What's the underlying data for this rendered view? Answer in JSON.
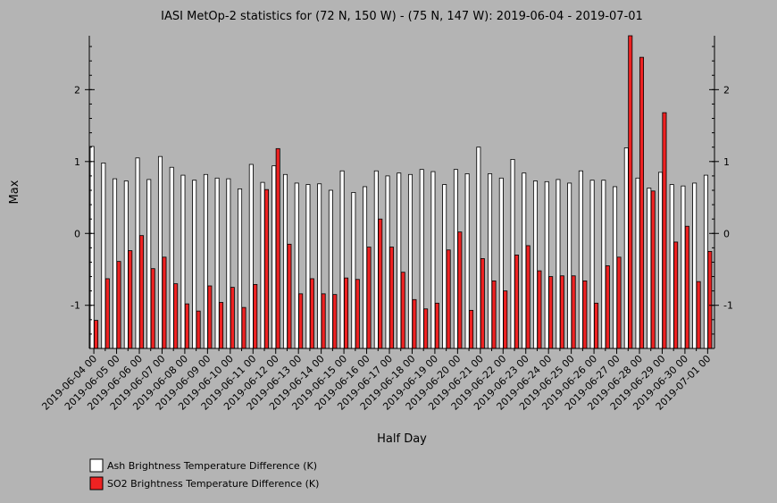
{
  "chart_data": {
    "type": "bar",
    "title": "IASI MetOp-2 statistics for (72 N, 150 W) - (75 N, 147 W): 2019-06-04 - 2019-07-01",
    "xlabel": "Half Day",
    "ylabel": "Max",
    "ylim": [
      -1.6,
      2.75
    ],
    "yticks": [
      -1,
      0,
      1,
      2
    ],
    "grid": false,
    "legend_position": "bottom-left",
    "x_tick_labels": [
      "2019-06-04 00",
      "2019-06-05 00",
      "2019-06-06 00",
      "2019-06-07 00",
      "2019-06-08 00",
      "2019-06-09 00",
      "2019-06-10 00",
      "2019-06-11 00",
      "2019-06-12 00",
      "2019-06-13 00",
      "2019-06-14 00",
      "2019-06-15 00",
      "2019-06-16 00",
      "2019-06-17 00",
      "2019-06-18 00",
      "2019-06-19 00",
      "2019-06-20 00",
      "2019-06-21 00",
      "2019-06-22 00",
      "2019-06-23 00",
      "2019-06-24 00",
      "2019-06-25 00",
      "2019-06-26 00",
      "2019-06-27 00",
      "2019-06-28 00",
      "2019-06-29 00",
      "2019-06-30 00",
      "2019-07-01 00"
    ],
    "categories": [
      "2019-06-04 00",
      "2019-06-04 12",
      "2019-06-05 00",
      "2019-06-05 12",
      "2019-06-06 00",
      "2019-06-06 12",
      "2019-06-07 00",
      "2019-06-07 12",
      "2019-06-08 00",
      "2019-06-08 12",
      "2019-06-09 00",
      "2019-06-09 12",
      "2019-06-10 00",
      "2019-06-10 12",
      "2019-06-11 00",
      "2019-06-11 12",
      "2019-06-12 00",
      "2019-06-12 12",
      "2019-06-13 00",
      "2019-06-13 12",
      "2019-06-14 00",
      "2019-06-14 12",
      "2019-06-15 00",
      "2019-06-15 12",
      "2019-06-16 00",
      "2019-06-16 12",
      "2019-06-17 00",
      "2019-06-17 12",
      "2019-06-18 00",
      "2019-06-18 12",
      "2019-06-19 00",
      "2019-06-19 12",
      "2019-06-20 00",
      "2019-06-20 12",
      "2019-06-21 00",
      "2019-06-21 12",
      "2019-06-22 00",
      "2019-06-22 12",
      "2019-06-23 00",
      "2019-06-23 12",
      "2019-06-24 00",
      "2019-06-24 12",
      "2019-06-25 00",
      "2019-06-25 12",
      "2019-06-26 00",
      "2019-06-26 12",
      "2019-06-27 00",
      "2019-06-27 12",
      "2019-06-28 00",
      "2019-06-28 12",
      "2019-06-29 00",
      "2019-06-29 12",
      "2019-06-30 00",
      "2019-06-30 12",
      "2019-07-01 00"
    ],
    "series": [
      {
        "name": "Ash Brightness Temperature Difference (K)",
        "color": "#ffffff",
        "values": [
          1.21,
          0.98,
          0.76,
          0.73,
          1.05,
          0.75,
          1.07,
          0.92,
          0.81,
          0.74,
          0.82,
          0.77,
          0.76,
          0.62,
          0.96,
          0.71,
          0.94,
          0.82,
          0.7,
          0.68,
          0.69,
          0.6,
          0.87,
          0.57,
          0.65,
          0.87,
          0.8,
          0.84,
          0.82,
          0.89,
          0.86,
          0.68,
          0.89,
          0.83,
          1.2,
          0.83,
          0.77,
          1.03,
          0.84,
          0.73,
          0.72,
          0.75,
          0.7,
          0.87,
          0.74,
          0.74,
          0.65,
          1.19,
          0.77,
          0.63,
          0.85,
          0.68,
          0.66,
          0.7,
          0.81
        ]
      },
      {
        "name": "SO2 Brightness Temperature Difference (K)",
        "color": "#ee2222",
        "values": [
          -1.21,
          -0.63,
          -0.39,
          -0.24,
          -0.03,
          -0.49,
          -0.33,
          -0.7,
          -0.98,
          -1.08,
          -0.73,
          -0.96,
          -0.75,
          -1.03,
          -0.71,
          0.61,
          1.18,
          -0.15,
          -0.84,
          -0.63,
          -0.84,
          -0.85,
          -0.62,
          -0.64,
          -0.19,
          0.2,
          -0.19,
          -0.54,
          -0.92,
          -1.05,
          -0.97,
          -0.23,
          0.02,
          -1.07,
          -0.35,
          -0.66,
          -0.8,
          -0.3,
          -0.17,
          -0.52,
          -0.6,
          -0.59,
          -0.59,
          -0.66,
          -0.97,
          -0.45,
          -0.33,
          2.77,
          2.45,
          0.59,
          1.68,
          -0.12,
          0.1,
          -0.67,
          -0.25
        ]
      }
    ]
  }
}
